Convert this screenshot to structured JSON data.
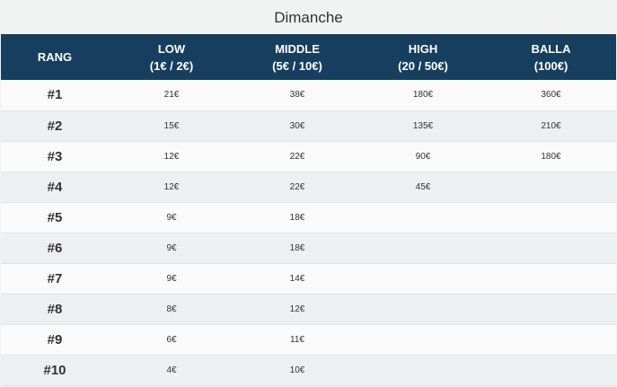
{
  "title": "Dimanche",
  "columns": [
    {
      "line1": "RANG",
      "line2": ""
    },
    {
      "line1": "LOW",
      "line2": "(1€ / 2€)"
    },
    {
      "line1": "MIDDLE",
      "line2": "(5€ / 10€)"
    },
    {
      "line1": "HIGH",
      "line2": "(20 / 50€)"
    },
    {
      "line1": "BALLA",
      "line2": "(100€)"
    }
  ],
  "rows": [
    {
      "rank": "#1",
      "low": "21€",
      "middle": "38€",
      "high": "180€",
      "balla": "360€"
    },
    {
      "rank": "#2",
      "low": "15€",
      "middle": "30€",
      "high": "135€",
      "balla": "210€"
    },
    {
      "rank": "#3",
      "low": "12€",
      "middle": "22€",
      "high": "90€",
      "balla": "180€"
    },
    {
      "rank": "#4",
      "low": "12€",
      "middle": "22€",
      "high": "45€",
      "balla": ""
    },
    {
      "rank": "#5",
      "low": "9€",
      "middle": "18€",
      "high": "",
      "balla": ""
    },
    {
      "rank": "#6",
      "low": "9€",
      "middle": "18€",
      "high": "",
      "balla": ""
    },
    {
      "rank": "#7",
      "low": "9€",
      "middle": "14€",
      "high": "",
      "balla": ""
    },
    {
      "rank": "#8",
      "low": "8€",
      "middle": "12€",
      "high": "",
      "balla": ""
    },
    {
      "rank": "#9",
      "low": "6€",
      "middle": "11€",
      "high": "",
      "balla": ""
    },
    {
      "rank": "#10",
      "low": "4€",
      "middle": "10€",
      "high": "",
      "balla": ""
    }
  ],
  "colors": {
    "header_bg": "#163f5f",
    "header_text": "#ffffff",
    "row_odd": "#fafafa",
    "row_even": "#edf0f1"
  }
}
